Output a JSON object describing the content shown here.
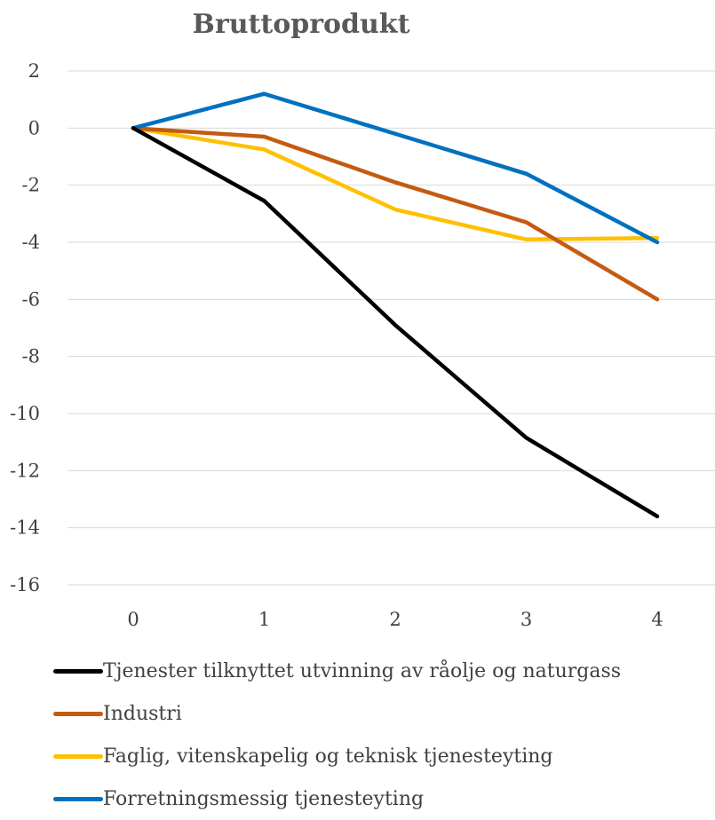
{
  "chart_data": {
    "type": "line",
    "title": "Bruttoprodukt",
    "xlabel": "",
    "ylabel": "",
    "x": [
      0,
      1,
      2,
      3,
      4
    ],
    "xticks": [
      "0",
      "1",
      "2",
      "3",
      "4"
    ],
    "ylim": [
      -16,
      2
    ],
    "yticks": [
      "2",
      "0",
      "-2",
      "-4",
      "-6",
      "-8",
      "-10",
      "-12",
      "-14",
      "-16"
    ],
    "grid": "horizontal",
    "legend_position": "bottom",
    "series": [
      {
        "name": "Tjenester tilknyttet utvinning av råolje og naturgass",
        "color": "#000000",
        "values": [
          0,
          -2.55,
          -6.9,
          -10.85,
          -13.6
        ]
      },
      {
        "name": "Industri",
        "color": "#C55A11",
        "values": [
          0,
          -0.3,
          -1.9,
          -3.3,
          -6.0
        ]
      },
      {
        "name": "Faglig, vitenskapelig og teknisk tjenesteyting",
        "color": "#FFC000",
        "values": [
          0,
          -0.75,
          -2.85,
          -3.9,
          -3.85
        ]
      },
      {
        "name": "Forretningsmessig tjenesteyting",
        "color": "#0070C0",
        "values": [
          0,
          1.2,
          -0.2,
          -1.6,
          -4.0
        ]
      }
    ]
  }
}
